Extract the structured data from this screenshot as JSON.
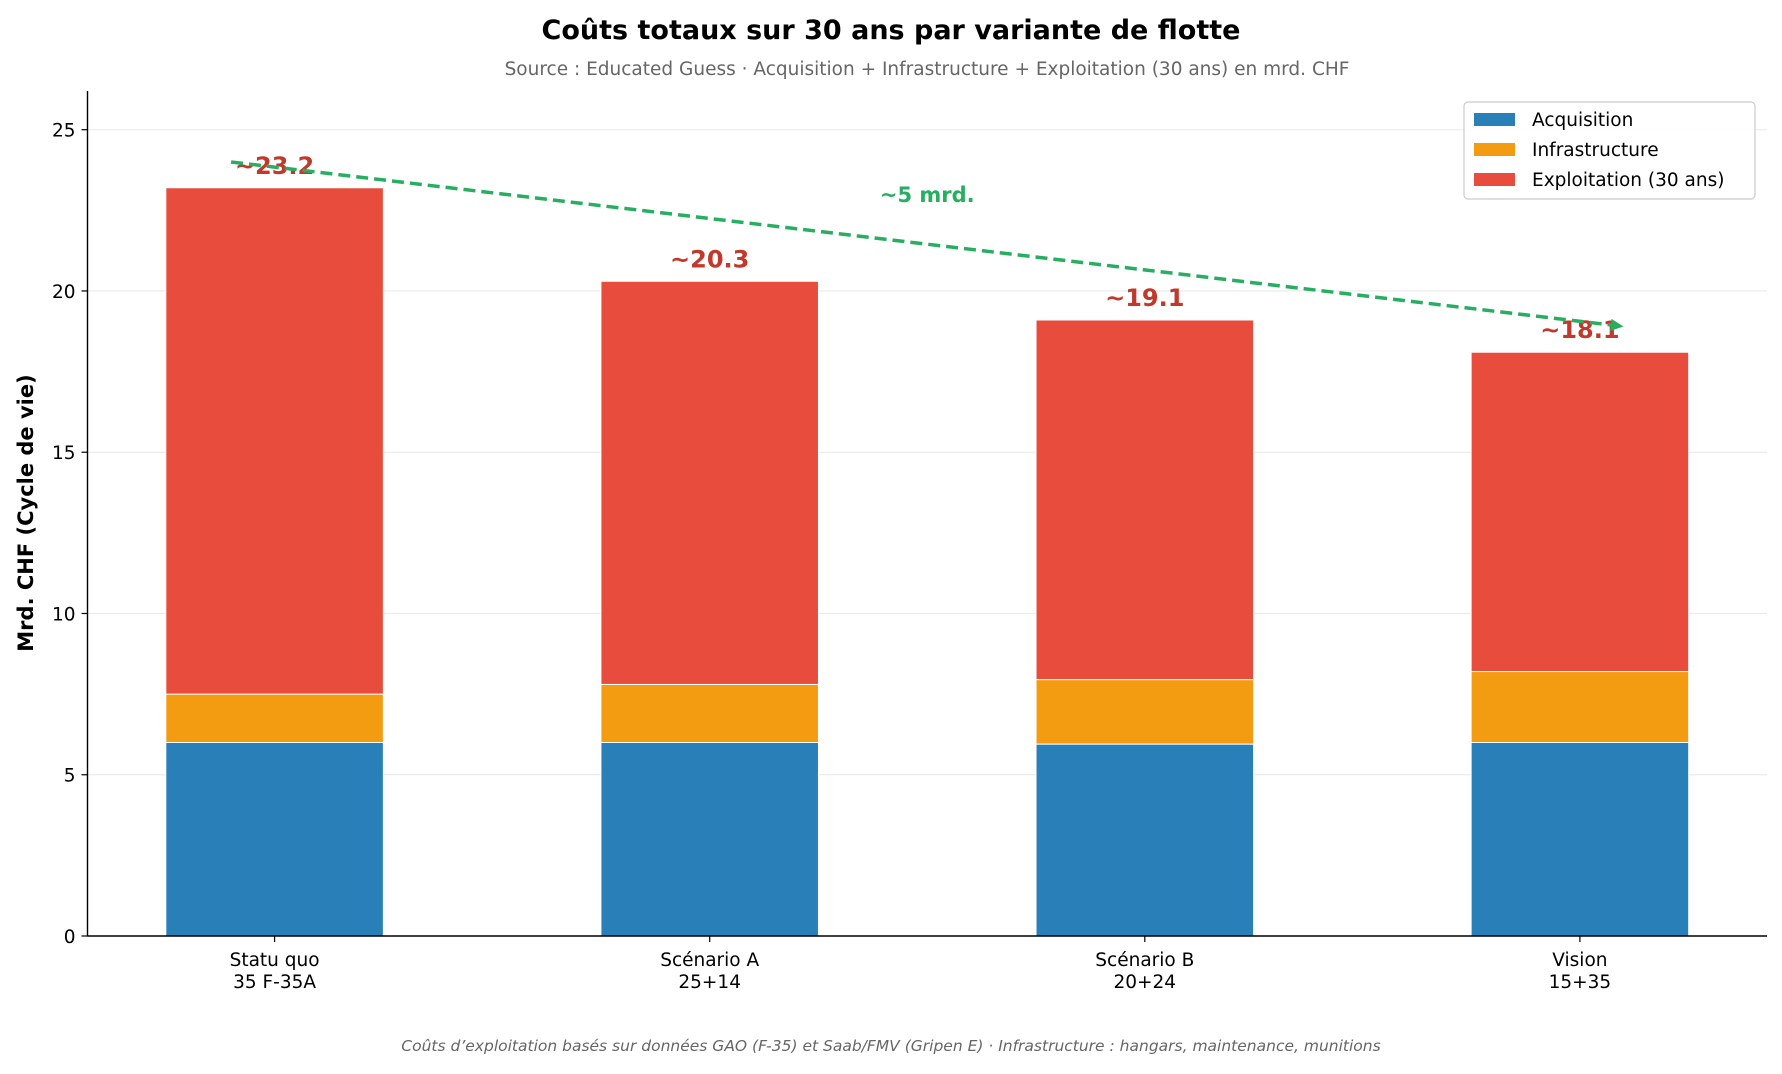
{
  "chart_data": {
    "type": "bar",
    "stacked": true,
    "title": "Coûts totaux sur 30 ans par variante de flotte",
    "subtitle": "Source : Educated Guess · Acquisition + Infrastructure + Exploitation (30 ans) en mrd. CHF",
    "footer": "Coûts d’exploitation basés sur données GAO (F-35) et Saab/FMV (Gripen E) · Infrastructure : hangars, maintenance, munitions",
    "xlabel": "",
    "ylabel": "Mrd. CHF (Cycle de vie)",
    "ylim": [
      0,
      26.2
    ],
    "yticks": [
      0,
      5,
      10,
      15,
      20,
      25
    ],
    "grid": "horizontal",
    "legend_position": "top-right",
    "categories": [
      [
        "Statu quo",
        "35 F-35A"
      ],
      [
        "Scénario A",
        "25+14"
      ],
      [
        "Scénario B",
        "20+24"
      ],
      [
        "Vision",
        "15+35"
      ]
    ],
    "series": [
      {
        "name": "Acquisition",
        "color": "#2980b9",
        "values": [
          6.0,
          6.0,
          5.95,
          6.0
        ]
      },
      {
        "name": "Infrastructure",
        "color": "#f39c12",
        "values": [
          1.5,
          1.8,
          2.0,
          2.2
        ]
      },
      {
        "name": "Exploitation (30 ans)",
        "color": "#e74c3c",
        "values": [
          15.7,
          12.5,
          11.15,
          9.9
        ]
      }
    ],
    "total_labels": [
      "~23.2",
      "~20.3",
      "~19.1",
      "~18.1"
    ],
    "total_label_color": "#c0392b",
    "trend_arrow": {
      "from": [
        -0.1,
        24.0
      ],
      "to": [
        3.1,
        18.9
      ],
      "style": "dashed",
      "color": "#27ae60",
      "label": "~5 mrd.",
      "label_at": [
        1.5,
        23.0
      ]
    }
  }
}
